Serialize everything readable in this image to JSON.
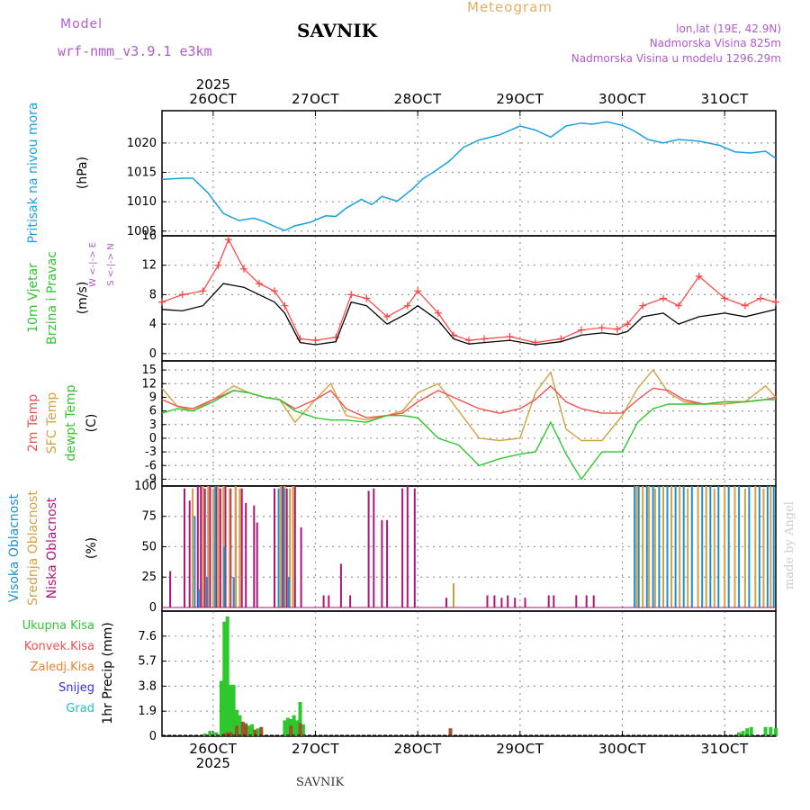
{
  "header": {
    "model_label": "Model",
    "model_name": "wrf-nmm_v3.9.1 e3km",
    "station": "SAVNIK",
    "product": "Meteogram",
    "lonlat": "lon,lat (19E, 42.9N)",
    "elevation": "Nadmorska Visina 825m",
    "model_elevation": "Nadmorska Visina u modelu 1296.29m",
    "footer_station": "SAVNIK",
    "credit": "made by Angel"
  },
  "colors": {
    "pressure": "#1aa0e0",
    "wind_speed": "#000000",
    "gust": "#ff4040",
    "temp2m": "#f05050",
    "sfc_temp": "#d4a040",
    "dewpt": "#2ec82e",
    "high_cloud": "#1e90d0",
    "mid_cloud": "#d4a040",
    "low_cloud": "#b0157a",
    "total_precip": "#2ec82e",
    "convective": "#a0522d"
  },
  "time_axis": {
    "year": "2025",
    "labels": [
      "26OCT",
      "27OCT",
      "28OCT",
      "29OCT",
      "30OCT",
      "31OCT"
    ],
    "day_positions": [
      0.5,
      1.5,
      2.5,
      3.5,
      4.5,
      5.5
    ],
    "range": [
      0,
      6
    ]
  },
  "chart_data": [
    {
      "type": "line",
      "panel": "pressure",
      "title": "Pritisak na nivou mora",
      "ylabel": "(hPa)",
      "yticks": [
        "1005",
        "1010",
        "1015",
        "1020"
      ],
      "ytick_values": [
        1005,
        1010,
        1015,
        1020
      ],
      "ylim": [
        1004.2,
        1025.5
      ],
      "series": [
        {
          "name": "Pritisak na nivou mora",
          "x": [
            0.0,
            0.2,
            0.3,
            0.45,
            0.6,
            0.75,
            0.9,
            1.0,
            1.1,
            1.2,
            1.3,
            1.45,
            1.6,
            1.7,
            1.8,
            1.95,
            2.05,
            2.15,
            2.3,
            2.45,
            2.55,
            2.65,
            2.8,
            2.95,
            3.1,
            3.3,
            3.5,
            3.65,
            3.8,
            3.95,
            4.1,
            4.2,
            4.35,
            4.5,
            4.6,
            4.75,
            4.9,
            5.05,
            5.25,
            5.45,
            5.6,
            5.75,
            5.9,
            6.0
          ],
          "y": [
            1013.8,
            1014.0,
            1014.0,
            1011.5,
            1008.0,
            1006.8,
            1007.2,
            1006.6,
            1005.8,
            1005.1,
            1005.9,
            1006.5,
            1007.6,
            1007.5,
            1008.9,
            1010.4,
            1009.5,
            1010.9,
            1010.1,
            1012.2,
            1013.9,
            1015.0,
            1016.8,
            1019.3,
            1020.5,
            1021.4,
            1022.9,
            1022.2,
            1021.0,
            1022.9,
            1023.4,
            1023.2,
            1023.6,
            1023.0,
            1022.2,
            1020.6,
            1020.0,
            1020.6,
            1020.3,
            1019.6,
            1018.5,
            1018.3,
            1018.6,
            1017.4
          ]
        }
      ]
    },
    {
      "type": "line",
      "panel": "wind",
      "title": "10m Vjetar Brzina i Pravac",
      "ylabel": "(m/s)",
      "yticks": [
        "0",
        "4",
        "8",
        "12",
        "16"
      ],
      "ytick_values": [
        0,
        4,
        8,
        12,
        16
      ],
      "ylim": [
        -1,
        16
      ],
      "direction_legend": "W <-|-> E",
      "direction_legend_v": "S <-|-> N",
      "series": [
        {
          "name": "Brzina",
          "x": [
            0.0,
            0.2,
            0.4,
            0.6,
            0.8,
            0.95,
            1.1,
            1.2,
            1.35,
            1.5,
            1.7,
            1.85,
            2.0,
            2.2,
            2.4,
            2.5,
            2.7,
            2.85,
            3.0,
            3.15,
            3.4,
            3.65,
            3.9,
            4.1,
            4.3,
            4.45,
            4.55,
            4.7,
            4.9,
            5.05,
            5.25,
            5.5,
            5.7,
            5.85,
            6.0
          ],
          "y": [
            6.0,
            5.8,
            6.5,
            9.5,
            9.0,
            8.0,
            7.0,
            5.5,
            1.5,
            1.2,
            1.6,
            7.0,
            6.5,
            4.0,
            5.5,
            6.5,
            4.5,
            2.0,
            1.3,
            1.5,
            1.8,
            1.2,
            1.6,
            2.5,
            2.8,
            2.6,
            3.0,
            5.0,
            5.5,
            4.0,
            5.0,
            5.5,
            5.0,
            5.5,
            6.0
          ]
        },
        {
          "name": "Udari",
          "x": [
            0.0,
            0.2,
            0.4,
            0.55,
            0.65,
            0.8,
            0.95,
            1.1,
            1.2,
            1.35,
            1.5,
            1.7,
            1.85,
            2.0,
            2.2,
            2.4,
            2.5,
            2.7,
            2.85,
            3.0,
            3.15,
            3.4,
            3.65,
            3.9,
            4.1,
            4.3,
            4.45,
            4.55,
            4.7,
            4.9,
            5.05,
            5.25,
            5.5,
            5.7,
            5.85,
            6.0
          ],
          "y": [
            7.0,
            8.0,
            8.5,
            12.0,
            15.5,
            11.5,
            9.5,
            8.5,
            6.5,
            2.0,
            1.8,
            2.2,
            8.0,
            7.5,
            5.0,
            6.5,
            8.5,
            5.5,
            2.5,
            1.8,
            2.0,
            2.3,
            1.5,
            2.0,
            3.2,
            3.5,
            3.3,
            4.0,
            6.5,
            7.5,
            6.5,
            10.5,
            7.5,
            6.5,
            7.5,
            7.0
          ]
        }
      ]
    },
    {
      "type": "line",
      "panel": "temperature",
      "titles": [
        "2m Temp",
        "SFC Temp",
        "dewpt Temp"
      ],
      "ylabel": "(C)",
      "yticks": [
        "-9",
        "-6",
        "-3",
        "0",
        "3",
        "6",
        "9",
        "12",
        "15"
      ],
      "ytick_values": [
        -9,
        -6,
        -3,
        0,
        3,
        6,
        9,
        12,
        15
      ],
      "ylim": [
        -10.5,
        17
      ],
      "series": [
        {
          "name": "2m Temp",
          "x": [
            0.0,
            0.15,
            0.3,
            0.5,
            0.7,
            0.85,
            1.0,
            1.15,
            1.3,
            1.5,
            1.65,
            1.8,
            2.0,
            2.2,
            2.35,
            2.5,
            2.7,
            2.9,
            3.1,
            3.3,
            3.5,
            3.65,
            3.8,
            3.95,
            4.1,
            4.3,
            4.5,
            4.65,
            4.8,
            4.95,
            5.1,
            5.3,
            5.5,
            5.7,
            5.9,
            6.0
          ],
          "y": [
            8.5,
            7.0,
            6.5,
            8.5,
            10.5,
            10.0,
            9.0,
            8.5,
            6.5,
            8.5,
            10.5,
            6.5,
            4.5,
            5.0,
            5.5,
            8.0,
            10.5,
            8.5,
            6.5,
            5.5,
            6.5,
            8.5,
            11.5,
            8.0,
            6.5,
            5.5,
            5.5,
            8.5,
            11.0,
            10.5,
            8.5,
            7.5,
            8.0,
            8.0,
            8.5,
            9.0
          ]
        },
        {
          "name": "SFC Temp",
          "x": [
            0.0,
            0.15,
            0.3,
            0.5,
            0.7,
            0.85,
            1.0,
            1.15,
            1.3,
            1.5,
            1.65,
            1.8,
            2.0,
            2.2,
            2.35,
            2.5,
            2.7,
            2.9,
            3.1,
            3.3,
            3.5,
            3.65,
            3.8,
            3.95,
            4.1,
            4.3,
            4.5,
            4.65,
            4.8,
            4.95,
            5.1,
            5.3,
            5.5,
            5.7,
            5.9,
            6.0
          ],
          "y": [
            11.0,
            7.0,
            6.0,
            8.5,
            11.5,
            10.0,
            9.0,
            8.5,
            3.5,
            8.5,
            12.0,
            5.0,
            4.0,
            5.0,
            6.0,
            10.0,
            12.0,
            6.0,
            0.0,
            -0.5,
            0.0,
            10.0,
            14.5,
            2.0,
            -0.5,
            -0.5,
            5.0,
            11.0,
            15.0,
            10.0,
            8.0,
            7.5,
            7.5,
            8.0,
            11.5,
            9.0
          ]
        },
        {
          "name": "dewpt Temp",
          "x": [
            0.0,
            0.15,
            0.3,
            0.5,
            0.7,
            0.85,
            1.0,
            1.15,
            1.3,
            1.5,
            1.65,
            1.8,
            2.0,
            2.2,
            2.35,
            2.5,
            2.7,
            2.9,
            3.1,
            3.3,
            3.5,
            3.65,
            3.8,
            3.95,
            4.1,
            4.3,
            4.5,
            4.65,
            4.8,
            4.95,
            5.1,
            5.3,
            5.5,
            5.7,
            5.9,
            6.0
          ],
          "y": [
            5.5,
            6.5,
            6.0,
            8.0,
            10.5,
            10.0,
            9.0,
            8.5,
            6.0,
            4.5,
            4.0,
            4.0,
            3.5,
            5.0,
            5.0,
            4.5,
            0.0,
            -1.5,
            -6.0,
            -4.5,
            -3.5,
            -3.0,
            3.5,
            -3.5,
            -9.0,
            -3.0,
            -3.0,
            3.5,
            6.5,
            7.5,
            7.5,
            7.5,
            8.0,
            8.0,
            8.5,
            8.5
          ]
        }
      ]
    },
    {
      "type": "bar",
      "panel": "clouds",
      "titles": [
        "Visoka Oblacnost",
        "Srednja Oblacnost",
        "Niska Oblacnost"
      ],
      "ylabel": "(%)",
      "yticks": [
        "0",
        "25",
        "50",
        "75",
        "100"
      ],
      "ytick_values": [
        0,
        25,
        50,
        75,
        100
      ],
      "ylim": [
        -3,
        100
      ],
      "series": [
        {
          "name": "Niska Oblacnost",
          "x": [
            0.08,
            0.22,
            0.27,
            0.35,
            0.38,
            0.42,
            0.47,
            0.53,
            0.57,
            0.62,
            0.67,
            0.72,
            0.78,
            0.82,
            0.9,
            0.93,
            1.1,
            1.18,
            1.22,
            1.3,
            1.36,
            1.58,
            1.63,
            1.75,
            1.84,
            2.02,
            2.07,
            2.15,
            2.2,
            2.35,
            2.4,
            2.47,
            2.78,
            3.18,
            3.25,
            3.32,
            3.38,
            3.45,
            3.55,
            3.78,
            3.83,
            4.05,
            4.15,
            4.22
          ],
          "values": [
            30,
            98,
            88,
            100,
            100,
            98,
            100,
            100,
            98,
            100,
            98,
            100,
            98,
            86,
            84,
            70,
            98,
            100,
            98,
            100,
            66,
            10,
            10,
            36,
            10,
            96,
            98,
            72,
            72,
            98,
            100,
            98,
            8,
            10,
            10,
            8,
            10,
            8,
            8,
            10,
            10,
            10,
            10,
            10
          ]
        },
        {
          "name": "Srednja Oblacnost",
          "x": [
            0.3,
            0.4,
            0.45,
            0.5,
            0.55,
            0.6,
            0.66,
            0.72,
            0.76,
            1.16,
            1.2,
            1.25,
            1.28,
            2.85,
            4.64,
            4.7,
            4.76,
            4.82,
            4.9,
            4.98,
            5.06,
            5.14,
            5.24,
            5.32,
            5.4,
            5.5,
            5.6,
            5.7,
            5.8,
            5.88,
            5.95
          ],
          "values": [
            98,
            100,
            100,
            98,
            100,
            100,
            98,
            100,
            98,
            100,
            100,
            98,
            100,
            20,
            100,
            100,
            100,
            98,
            100,
            100,
            100,
            98,
            100,
            100,
            98,
            100,
            100,
            98,
            100,
            98,
            100
          ]
        },
        {
          "name": "Visoka Oblacnost",
          "x": [
            0.32,
            0.36,
            0.44,
            0.52,
            0.61,
            0.7,
            1.14,
            1.19,
            1.24,
            4.62,
            4.66,
            4.74,
            4.8,
            4.86,
            4.94,
            5.02,
            5.1,
            5.18,
            5.28,
            5.36,
            5.44,
            5.54,
            5.64,
            5.74,
            5.84,
            5.92,
            5.98
          ],
          "values": [
            75,
            15,
            25,
            100,
            50,
            25,
            98,
            98,
            25,
            100,
            100,
            100,
            100,
            100,
            100,
            100,
            100,
            100,
            100,
            100,
            100,
            100,
            100,
            100,
            100,
            100,
            100
          ]
        }
      ]
    },
    {
      "type": "bar",
      "panel": "precip",
      "ylabel": "1hr Precip (mm)",
      "yticks": [
        "0",
        "1.9",
        "3.8",
        "5.7",
        "7.6"
      ],
      "ytick_values": [
        0,
        1.9,
        3.8,
        5.7,
        7.6
      ],
      "ylim": [
        0,
        9.5
      ],
      "legend": [
        "Ukupna Kisa",
        "Konvek.Kisa",
        "Zaledj.Kisa",
        "Snijeg",
        "Grad"
      ],
      "series": [
        {
          "name": "Ukupna Kisa",
          "x": [
            0.42,
            0.47,
            0.53,
            0.58,
            0.61,
            0.64,
            0.67,
            0.7,
            0.73,
            0.76,
            0.79,
            0.82,
            0.85,
            0.88,
            0.91,
            0.94,
            0.97,
            1.2,
            1.23,
            1.26,
            1.29,
            1.32,
            1.35,
            1.38,
            5.64,
            5.68,
            5.72,
            5.76,
            5.9,
            5.95,
            6.0
          ],
          "values": [
            0.2,
            0.4,
            0.3,
            4.2,
            8.7,
            9.1,
            3.9,
            3.9,
            2.0,
            1.6,
            1.1,
            1.0,
            0.8,
            0.9,
            0.5,
            0.6,
            0.4,
            1.2,
            1.4,
            1.3,
            1.6,
            1.2,
            2.6,
            0.9,
            0.3,
            0.4,
            0.6,
            0.7,
            0.7,
            0.7,
            0.6
          ]
        },
        {
          "name": "Konvek.Kisa",
          "x": [
            0.61,
            0.64,
            0.67,
            0.73,
            0.79,
            0.82,
            0.91,
            0.97,
            1.26,
            1.35,
            2.82
          ],
          "values": [
            0.2,
            0.3,
            0.3,
            0.8,
            1.1,
            0.9,
            0.5,
            0.7,
            0.8,
            1.0,
            0.6
          ]
        }
      ]
    }
  ]
}
